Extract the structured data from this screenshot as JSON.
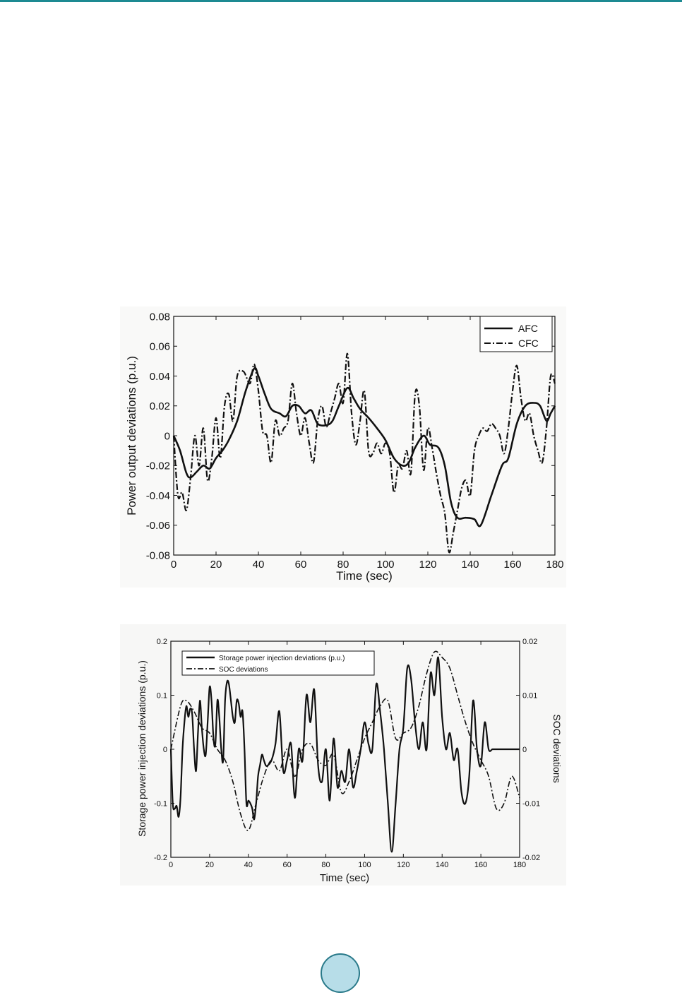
{
  "chart_data": [
    {
      "type": "line",
      "xlabel": "Time (sec)",
      "ylabel": "Power output deviations (p.u.)",
      "xlim": [
        0,
        180
      ],
      "ylim": [
        -0.08,
        0.08
      ],
      "xticks": [
        "0",
        "20",
        "40",
        "60",
        "80",
        "100",
        "120",
        "140",
        "160",
        "180"
      ],
      "yticks": [
        "-0.08",
        "-0.06",
        "-0.04",
        "-0.02",
        "0",
        "0.02",
        "0.04",
        "0.06",
        "0.08"
      ],
      "legend_position": "top-right",
      "grid": false,
      "series": [
        {
          "name": "AFC",
          "style": "solid",
          "color": "#111111",
          "x": [
            0,
            3,
            6,
            8,
            11,
            14,
            17,
            20,
            23,
            26,
            30,
            34,
            38,
            40,
            43,
            46,
            50,
            53,
            56,
            59,
            62,
            65,
            68,
            72,
            75,
            78,
            82,
            85,
            88,
            92,
            96,
            100,
            104,
            108,
            111,
            114,
            118,
            121,
            125,
            128,
            131,
            134,
            138,
            142,
            145,
            150,
            155,
            158,
            162,
            166,
            170,
            173,
            176,
            178,
            180
          ],
          "y": [
            0.0,
            -0.01,
            -0.025,
            -0.028,
            -0.024,
            -0.02,
            -0.022,
            -0.015,
            -0.01,
            -0.003,
            0.01,
            0.03,
            0.045,
            0.04,
            0.028,
            0.018,
            0.015,
            0.013,
            0.02,
            0.02,
            0.015,
            0.017,
            0.008,
            0.007,
            0.01,
            0.02,
            0.032,
            0.025,
            0.018,
            0.012,
            0.005,
            -0.003,
            -0.015,
            -0.02,
            -0.018,
            -0.008,
            0.0,
            -0.006,
            -0.008,
            -0.02,
            -0.045,
            -0.055,
            -0.055,
            -0.056,
            -0.06,
            -0.04,
            -0.02,
            -0.015,
            0.008,
            0.02,
            0.022,
            0.02,
            0.01,
            0.015,
            0.02
          ]
        },
        {
          "name": "CFC",
          "style": "dash-dot",
          "color": "#111111",
          "x": [
            0,
            2,
            4,
            6,
            8,
            10,
            12,
            14,
            16,
            18,
            20,
            22,
            24,
            26,
            28,
            30,
            33,
            36,
            38,
            40,
            42,
            44,
            46,
            48,
            50,
            52,
            54,
            56,
            58,
            60,
            62,
            64,
            66,
            68,
            70,
            72,
            74,
            76,
            78,
            80,
            82,
            84,
            86,
            88,
            90,
            92,
            94,
            96,
            98,
            100,
            102,
            104,
            106,
            108,
            110,
            112,
            114,
            116,
            118,
            120,
            122,
            124,
            126,
            128,
            130,
            132,
            134,
            136,
            138,
            140,
            142,
            144,
            146,
            148,
            150,
            152,
            154,
            156,
            158,
            160,
            162,
            164,
            166,
            168,
            170,
            172,
            174,
            176,
            178,
            180
          ],
          "y": [
            0.0,
            -0.04,
            -0.038,
            -0.05,
            -0.028,
            0.0,
            -0.02,
            0.005,
            -0.03,
            -0.015,
            0.012,
            -0.015,
            0.02,
            0.028,
            0.01,
            0.04,
            0.043,
            0.035,
            0.048,
            0.03,
            0.003,
            0.0,
            -0.018,
            0.01,
            0.0,
            0.005,
            0.01,
            0.035,
            0.015,
            0.0,
            0.012,
            -0.005,
            -0.018,
            0.01,
            0.02,
            0.006,
            0.015,
            0.025,
            0.035,
            0.022,
            0.055,
            0.015,
            -0.006,
            0.01,
            0.03,
            -0.01,
            -0.012,
            -0.005,
            -0.012,
            -0.005,
            -0.012,
            -0.038,
            -0.02,
            -0.022,
            -0.01,
            -0.025,
            0.028,
            0.02,
            -0.023,
            0.005,
            -0.008,
            -0.025,
            -0.04,
            -0.052,
            -0.078,
            -0.065,
            -0.05,
            -0.035,
            -0.03,
            -0.04,
            -0.01,
            0.0,
            0.005,
            0.003,
            0.008,
            0.005,
            0.0,
            -0.012,
            0.005,
            0.03,
            0.047,
            0.025,
            0.01,
            0.015,
            0.0,
            -0.01,
            -0.018,
            0.005,
            0.04,
            0.035
          ]
        }
      ]
    },
    {
      "type": "line",
      "xlabel": "Time (sec)",
      "ylabel": "Storage power injection deviations (p.u.)",
      "y2label": "SOC deviations",
      "xlim": [
        0,
        180
      ],
      "ylim": [
        -0.2,
        0.2
      ],
      "y2lim": [
        -0.02,
        0.02
      ],
      "xticks": [
        "0",
        "20",
        "40",
        "60",
        "80",
        "100",
        "120",
        "140",
        "160",
        "180"
      ],
      "yticks": [
        "-0.2",
        "-0.1",
        "0",
        "0.1",
        "0.2"
      ],
      "y2ticks": [
        "-0.02",
        "-0.01",
        "0",
        "0.01",
        "0.02"
      ],
      "legend_position": "top-left",
      "grid": false,
      "series": [
        {
          "name": "Storage power injection deviations (p.u.)",
          "axis": "left",
          "style": "solid",
          "color": "#111111",
          "x": [
            0,
            1,
            2,
            3,
            4,
            5,
            6,
            7,
            8,
            9,
            10,
            11,
            12,
            13,
            14,
            15,
            16,
            17,
            18,
            19,
            20,
            21,
            22,
            23,
            24,
            25,
            26,
            27,
            28,
            29,
            30,
            31,
            32,
            33,
            34,
            35,
            36,
            37,
            38,
            39,
            40,
            41,
            42,
            43,
            44,
            45,
            46,
            47,
            48,
            49,
            50,
            52,
            54,
            56,
            58,
            60,
            62,
            64,
            66,
            68,
            70,
            72,
            74,
            76,
            78,
            80,
            82,
            84,
            86,
            88,
            90,
            92,
            94,
            96,
            98,
            100,
            102,
            104,
            106,
            108,
            110,
            112,
            114,
            116,
            118,
            120,
            122,
            124,
            126,
            128,
            130,
            132,
            134,
            136,
            138,
            140,
            142,
            144,
            146,
            148,
            150,
            152,
            154,
            156,
            158,
            160,
            162,
            164,
            166,
            168,
            170,
            172,
            174,
            176,
            178,
            180
          ],
          "y": [
            0.0,
            -0.1,
            -0.11,
            -0.105,
            -0.125,
            -0.09,
            0.0,
            0.05,
            0.08,
            0.06,
            0.075,
            0.065,
            0.0,
            -0.04,
            0.03,
            0.09,
            0.04,
            0.0,
            -0.01,
            0.05,
            0.115,
            0.09,
            0.02,
            0.01,
            0.09,
            0.06,
            0.0,
            -0.02,
            0.09,
            0.125,
            0.12,
            0.09,
            0.06,
            0.05,
            0.09,
            0.085,
            0.06,
            0.07,
            0.0,
            -0.1,
            -0.095,
            -0.1,
            -0.11,
            -0.13,
            -0.1,
            -0.05,
            -0.03,
            -0.01,
            -0.02,
            -0.03,
            -0.03,
            -0.02,
            0.01,
            0.07,
            -0.04,
            -0.02,
            0.01,
            -0.09,
            0.0,
            -0.02,
            0.1,
            0.05,
            0.11,
            -0.03,
            -0.06,
            0.0,
            -0.095,
            0.02,
            -0.07,
            -0.04,
            -0.06,
            0.0,
            -0.07,
            -0.04,
            0.0,
            0.05,
            0.01,
            0.0,
            0.12,
            0.07,
            0.0,
            -0.1,
            -0.19,
            -0.1,
            0.0,
            0.04,
            0.15,
            0.13,
            0.05,
            0.0,
            0.05,
            0.0,
            0.14,
            0.1,
            0.17,
            0.06,
            0.0,
            0.03,
            -0.02,
            0.0,
            -0.08,
            -0.1,
            -0.05,
            0.09,
            0.0,
            -0.03,
            0.05,
            0.0,
            0.0,
            0.0,
            0.0,
            0.0,
            0.0,
            0.0,
            0.0,
            0.0
          ]
        },
        {
          "name": "SOC deviations",
          "axis": "right",
          "style": "dash-dot",
          "color": "#111111",
          "x": [
            0,
            5,
            8,
            12,
            16,
            20,
            24,
            28,
            32,
            36,
            40,
            44,
            48,
            52,
            56,
            60,
            64,
            68,
            72,
            76,
            80,
            84,
            88,
            92,
            96,
            100,
            104,
            108,
            112,
            116,
            120,
            124,
            128,
            132,
            136,
            140,
            144,
            148,
            152,
            156,
            160,
            164,
            168,
            172,
            176,
            180
          ],
          "y": [
            0.0,
            0.008,
            0.009,
            0.007,
            0.004,
            0.003,
            0.0,
            -0.002,
            -0.006,
            -0.012,
            -0.015,
            -0.01,
            -0.005,
            -0.002,
            -0.004,
            0.0,
            -0.005,
            0.0,
            0.001,
            -0.002,
            -0.003,
            -0.001,
            -0.008,
            -0.006,
            -0.002,
            0.002,
            0.005,
            0.008,
            0.009,
            0.002,
            0.003,
            0.004,
            0.008,
            0.014,
            0.018,
            0.017,
            0.015,
            0.01,
            0.005,
            0.001,
            -0.002,
            -0.005,
            -0.011,
            -0.01,
            -0.005,
            -0.009
          ]
        }
      ]
    }
  ]
}
